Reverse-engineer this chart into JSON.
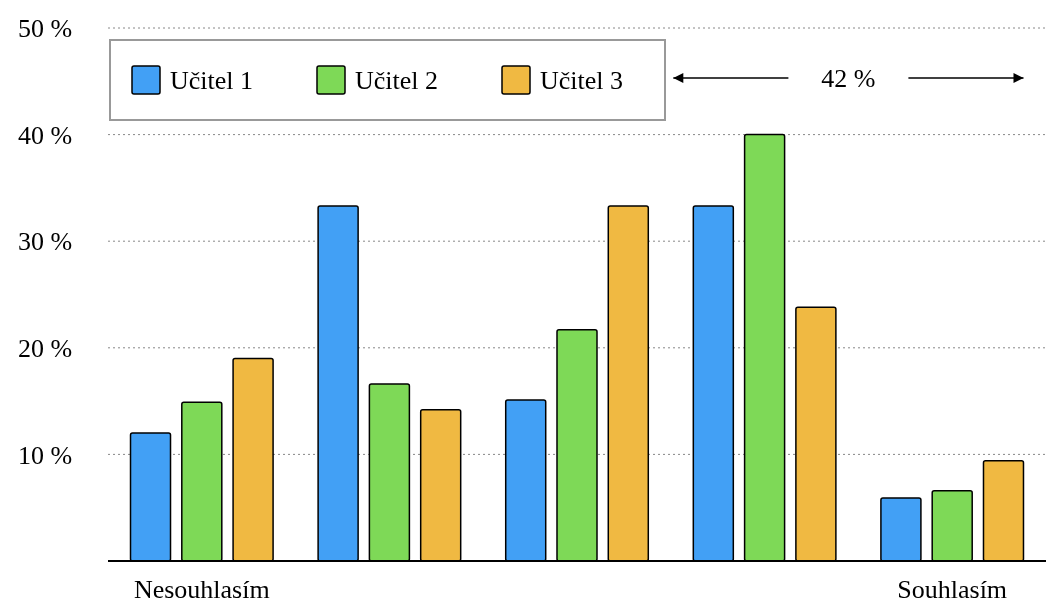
{
  "chart_data": {
    "type": "bar",
    "categories": [
      "Nesouhlasím",
      null,
      null,
      null,
      "Souhlasím"
    ],
    "series": [
      {
        "name": "Učitel 1",
        "color": "#42a0f5",
        "values": [
          12,
          33.3,
          15.1,
          33.3,
          5.9
        ]
      },
      {
        "name": "Učitel 2",
        "color": "#7ed957",
        "values": [
          14.9,
          16.6,
          21.7,
          40,
          6.6
        ]
      },
      {
        "name": "Učitel 3",
        "color": "#f0b942",
        "values": [
          19,
          14.2,
          33.3,
          23.8,
          9.4
        ]
      }
    ],
    "ylim": [
      0,
      50
    ],
    "yticks": [
      {
        "value": 10,
        "label": "10 %"
      },
      {
        "value": 20,
        "label": "20 %"
      },
      {
        "value": 30,
        "label": "30 %"
      },
      {
        "value": 40,
        "label": "40 %"
      },
      {
        "value": 50,
        "label": "50 %"
      }
    ],
    "grid": "y",
    "legend": "top left",
    "annotations": [
      "42 %"
    ]
  }
}
